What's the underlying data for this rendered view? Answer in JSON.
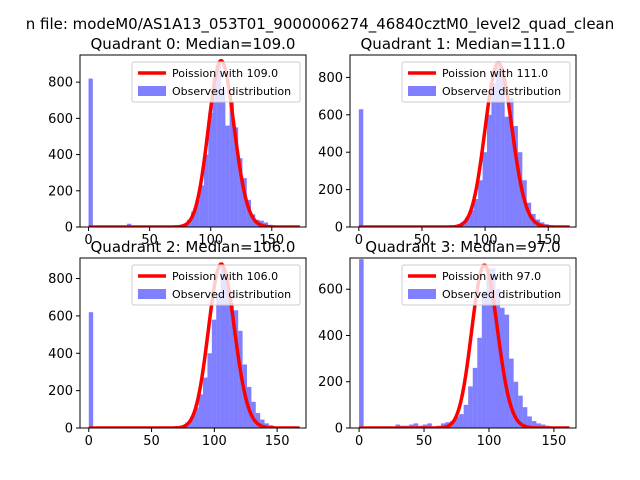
{
  "figure": {
    "suptitle": "n file: modeM0/AS1A13_053T01_9000006274_46840cztM0_level2_quad_clean"
  },
  "colors": {
    "hist": "#0000ff",
    "poisson": "#ff0000"
  },
  "chart_data": [
    {
      "type": "bar",
      "title": "Quadrant 0: Median=109.0",
      "xlim": [
        -7,
        178
      ],
      "ylim": [
        0,
        950
      ],
      "xticks": [
        0,
        50,
        100,
        150
      ],
      "yticks": [
        0,
        200,
        400,
        600,
        800
      ],
      "legend": {
        "placement": "top-right",
        "entries": [
          "Poission with 109.0",
          "Observed distribution"
        ]
      },
      "median": 109.0,
      "histogram": {
        "bin_width": 3.5,
        "bin_starts": [
          0,
          3.5,
          7,
          10.5,
          14,
          17.5,
          21,
          24.5,
          28,
          31.5,
          35,
          38.5,
          42,
          45.5,
          49,
          52.5,
          56,
          59.5,
          63,
          66.5,
          70,
          73.5,
          77,
          80.5,
          84,
          87.5,
          91,
          94.5,
          98,
          101.5,
          105,
          108.5,
          112,
          115.5,
          119,
          122.5,
          126,
          129.5,
          133,
          136.5,
          140,
          143.5,
          147,
          150.5,
          154,
          157.5,
          161,
          164.5,
          168,
          171.5
        ],
        "counts": [
          820,
          0,
          0,
          0,
          0,
          0,
          0,
          0,
          5,
          18,
          0,
          0,
          0,
          0,
          0,
          0,
          0,
          0,
          0,
          0,
          5,
          8,
          15,
          40,
          85,
          150,
          230,
          400,
          630,
          820,
          900,
          760,
          560,
          690,
          550,
          380,
          270,
          150,
          70,
          40,
          35,
          25,
          12,
          8,
          5,
          3,
          2,
          0,
          0,
          0
        ]
      }
    },
    {
      "type": "bar",
      "title": "Quadrant 1: Median=111.0",
      "xlim": [
        -7,
        172
      ],
      "ylim": [
        0,
        920
      ],
      "xticks": [
        0,
        50,
        100,
        150
      ],
      "yticks": [
        0,
        200,
        400,
        600,
        800
      ],
      "legend": {
        "placement": "top-right",
        "entries": [
          "Poission with 111.0",
          "Observed distribution"
        ]
      },
      "median": 111.0,
      "histogram": {
        "bin_width": 3.5,
        "bin_starts": [
          0,
          3.5,
          7,
          10.5,
          14,
          17.5,
          21,
          24.5,
          28,
          31.5,
          35,
          38.5,
          42,
          45.5,
          49,
          52.5,
          56,
          59.5,
          63,
          66.5,
          70,
          73.5,
          77,
          80.5,
          84,
          87.5,
          91,
          94.5,
          98,
          101.5,
          105,
          108.5,
          112,
          115.5,
          119,
          122.5,
          126,
          129.5,
          133,
          136.5,
          140,
          143.5,
          147,
          150.5,
          154,
          157.5,
          161,
          164.5
        ],
        "counts": [
          630,
          0,
          0,
          0,
          0,
          0,
          0,
          0,
          5,
          5,
          0,
          0,
          0,
          0,
          0,
          0,
          0,
          0,
          0,
          0,
          3,
          5,
          10,
          25,
          50,
          90,
          150,
          250,
          400,
          600,
          770,
          860,
          810,
          590,
          690,
          540,
          400,
          250,
          130,
          70,
          40,
          25,
          15,
          8,
          5,
          3,
          2,
          0
        ]
      }
    },
    {
      "type": "bar",
      "title": "Quadrant 2: Median=106.0",
      "xlim": [
        -7,
        173
      ],
      "ylim": [
        0,
        910
      ],
      "xticks": [
        0,
        50,
        100,
        150
      ],
      "yticks": [
        0,
        200,
        400,
        600,
        800
      ],
      "legend": {
        "placement": "top-right",
        "entries": [
          "Poission with 106.0",
          "Observed distribution"
        ]
      },
      "median": 106.0,
      "histogram": {
        "bin_width": 3.5,
        "bin_starts": [
          0,
          3.5,
          7,
          10.5,
          14,
          17.5,
          21,
          24.5,
          28,
          31.5,
          35,
          38.5,
          42,
          45.5,
          49,
          52.5,
          56,
          59.5,
          63,
          66.5,
          70,
          73.5,
          77,
          80.5,
          84,
          87.5,
          91,
          94.5,
          98,
          101.5,
          105,
          108.5,
          112,
          115.5,
          119,
          122.5,
          126,
          129.5,
          133,
          136.5,
          140,
          143.5,
          147,
          150.5,
          154,
          157.5,
          161
        ],
        "counts": [
          620,
          0,
          0,
          0,
          0,
          0,
          0,
          0,
          0,
          0,
          0,
          0,
          0,
          0,
          0,
          0,
          0,
          0,
          0,
          0,
          5,
          10,
          30,
          60,
          110,
          180,
          270,
          400,
          580,
          720,
          860,
          800,
          670,
          630,
          520,
          340,
          220,
          140,
          80,
          45,
          25,
          15,
          8,
          5,
          3,
          2,
          1
        ]
      }
    },
    {
      "type": "bar",
      "title": "Quadrant 3: Median=97.0",
      "xlim": [
        -7,
        167
      ],
      "ylim": [
        0,
        735
      ],
      "xticks": [
        0,
        50,
        100,
        150
      ],
      "yticks": [
        0,
        200,
        400,
        600
      ],
      "legend": {
        "placement": "top-right",
        "entries": [
          "Poission with 97.0",
          "Observed distribution"
        ]
      },
      "median": 97.0,
      "histogram": {
        "bin_width": 3.5,
        "bin_starts": [
          0,
          3.5,
          7,
          10.5,
          14,
          17.5,
          21,
          24.5,
          28,
          31.5,
          35,
          38.5,
          42,
          45.5,
          49,
          52.5,
          56,
          59.5,
          63,
          66.5,
          70,
          73.5,
          77,
          80.5,
          84,
          87.5,
          91,
          94.5,
          98,
          101.5,
          105,
          108.5,
          112,
          115.5,
          119,
          122.5,
          126,
          129.5,
          133,
          136.5,
          140,
          143.5,
          147,
          150.5,
          154,
          157.5
        ],
        "counts": [
          730,
          0,
          0,
          0,
          0,
          0,
          0,
          0,
          15,
          10,
          10,
          15,
          20,
          10,
          15,
          20,
          5,
          10,
          20,
          25,
          30,
          50,
          60,
          100,
          180,
          260,
          390,
          590,
          690,
          690,
          600,
          520,
          490,
          300,
          200,
          140,
          90,
          50,
          30,
          20,
          15,
          10,
          5,
          3,
          2,
          1
        ]
      }
    }
  ]
}
